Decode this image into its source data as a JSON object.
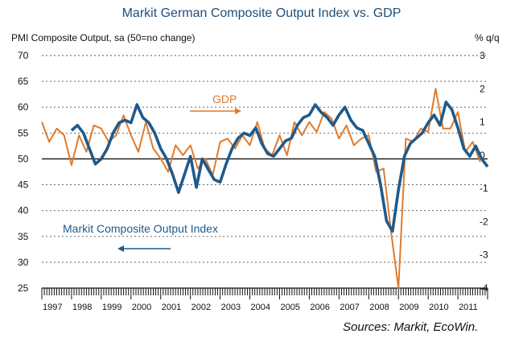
{
  "chart_data": {
    "type": "line",
    "title": "Markit German Composite Output Index vs. GDP",
    "ylabel": "PMI Composite Output, sa (50=no change)",
    "y2label": "% q/q",
    "source": "Sources: Markit, EcoWin.",
    "ylim": [
      25,
      70
    ],
    "y2lim": [
      -4,
      3
    ],
    "yticks": [
      25,
      30,
      35,
      40,
      45,
      50,
      55,
      60,
      65,
      70
    ],
    "y2ticks": [
      -4,
      -3,
      -2,
      -1,
      0,
      1,
      2,
      3
    ],
    "xlim": [
      1997,
      2012
    ],
    "xticks": [
      "1997",
      "1998",
      "1999",
      "2000",
      "2001",
      "2002",
      "2003",
      "2004",
      "2005",
      "2006",
      "2007",
      "2008",
      "2009",
      "2010",
      "2011"
    ],
    "grid": true,
    "reference_line": 50,
    "colors": {
      "pmi": "#1f5a8c",
      "gdp": "#e07b2c",
      "grid": "#555555"
    },
    "annotations": [
      {
        "text": "GDP",
        "series": "GDP"
      },
      {
        "text": "Markit Composite Output Index",
        "series": "Markit Composite Output Index"
      }
    ],
    "series": [
      {
        "name": "Markit Composite Output Index",
        "axis": "left",
        "x": [
          1998.0,
          1998.2,
          1998.4,
          1998.6,
          1998.8,
          1999.0,
          1999.2,
          1999.4,
          1999.6,
          1999.8,
          2000.0,
          2000.2,
          2000.4,
          2000.6,
          2000.8,
          2001.0,
          2001.2,
          2001.4,
          2001.6,
          2001.8,
          2002.0,
          2002.2,
          2002.4,
          2002.6,
          2002.8,
          2003.0,
          2003.2,
          2003.4,
          2003.6,
          2003.8,
          2004.0,
          2004.2,
          2004.4,
          2004.6,
          2004.8,
          2005.0,
          2005.2,
          2005.4,
          2005.6,
          2005.8,
          2006.0,
          2006.2,
          2006.4,
          2006.6,
          2006.8,
          2007.0,
          2007.2,
          2007.4,
          2007.6,
          2007.8,
          2008.0,
          2008.2,
          2008.4,
          2008.6,
          2008.8,
          2009.0,
          2009.2,
          2009.4,
          2009.6,
          2009.8,
          2010.0,
          2010.2,
          2010.4,
          2010.6,
          2010.8,
          2011.0,
          2011.2,
          2011.4,
          2011.6,
          2011.8,
          2012.0
        ],
        "values": [
          55.5,
          56.5,
          55.0,
          52.0,
          49.0,
          50.0,
          52.0,
          55.0,
          57.0,
          57.5,
          57.0,
          60.5,
          58.0,
          57.0,
          55.0,
          52.0,
          50.0,
          47.0,
          43.5,
          47.0,
          50.5,
          44.5,
          50.0,
          48.0,
          46.0,
          45.5,
          49.0,
          52.0,
          54.0,
          55.0,
          54.5,
          56.0,
          53.0,
          51.0,
          50.5,
          52.0,
          53.5,
          54.0,
          56.5,
          58.0,
          58.5,
          60.5,
          59.0,
          58.0,
          56.5,
          58.5,
          60.0,
          57.5,
          56.0,
          55.5,
          53.0,
          50.5,
          45.0,
          38.0,
          36.0,
          44.0,
          50.5,
          53.0,
          54.0,
          55.0,
          57.0,
          58.5,
          56.5,
          61.0,
          59.5,
          56.0,
          52.0,
          50.5,
          52.5,
          50.0,
          48.5
        ]
      },
      {
        "name": "GDP",
        "axis": "right",
        "x": [
          1997.0,
          1997.25,
          1997.5,
          1997.75,
          1998.0,
          1998.25,
          1998.5,
          1998.75,
          1999.0,
          1999.25,
          1999.5,
          1999.75,
          2000.0,
          2000.25,
          2000.5,
          2000.75,
          2001.0,
          2001.25,
          2001.5,
          2001.75,
          2002.0,
          2002.25,
          2002.5,
          2002.75,
          2003.0,
          2003.25,
          2003.5,
          2003.75,
          2004.0,
          2004.25,
          2004.5,
          2004.75,
          2005.0,
          2005.25,
          2005.5,
          2005.75,
          2006.0,
          2006.25,
          2006.5,
          2006.75,
          2007.0,
          2007.25,
          2007.5,
          2007.75,
          2008.0,
          2008.25,
          2008.5,
          2008.75,
          2009.0,
          2009.25,
          2009.5,
          2009.75,
          2010.0,
          2010.25,
          2010.5,
          2010.75,
          2011.0,
          2011.25,
          2011.5,
          2011.75
        ],
        "values": [
          1.0,
          0.4,
          0.8,
          0.6,
          -0.3,
          0.6,
          0.1,
          0.9,
          0.8,
          0.4,
          0.6,
          1.2,
          0.6,
          0.1,
          1.0,
          0.2,
          -0.1,
          -0.5,
          0.3,
          0.0,
          0.3,
          -0.4,
          -0.1,
          -0.6,
          0.4,
          0.5,
          0.2,
          0.6,
          0.3,
          1.0,
          0.2,
          0.0,
          0.6,
          0.0,
          1.0,
          0.6,
          1.0,
          0.7,
          1.3,
          1.1,
          0.5,
          0.9,
          0.3,
          0.5,
          0.6,
          -0.5,
          -0.4,
          -2.3,
          -4.0,
          0.5,
          0.4,
          0.8,
          0.7,
          2.0,
          0.8,
          0.8,
          1.3,
          0.1,
          0.4,
          -0.2
        ]
      }
    ]
  }
}
